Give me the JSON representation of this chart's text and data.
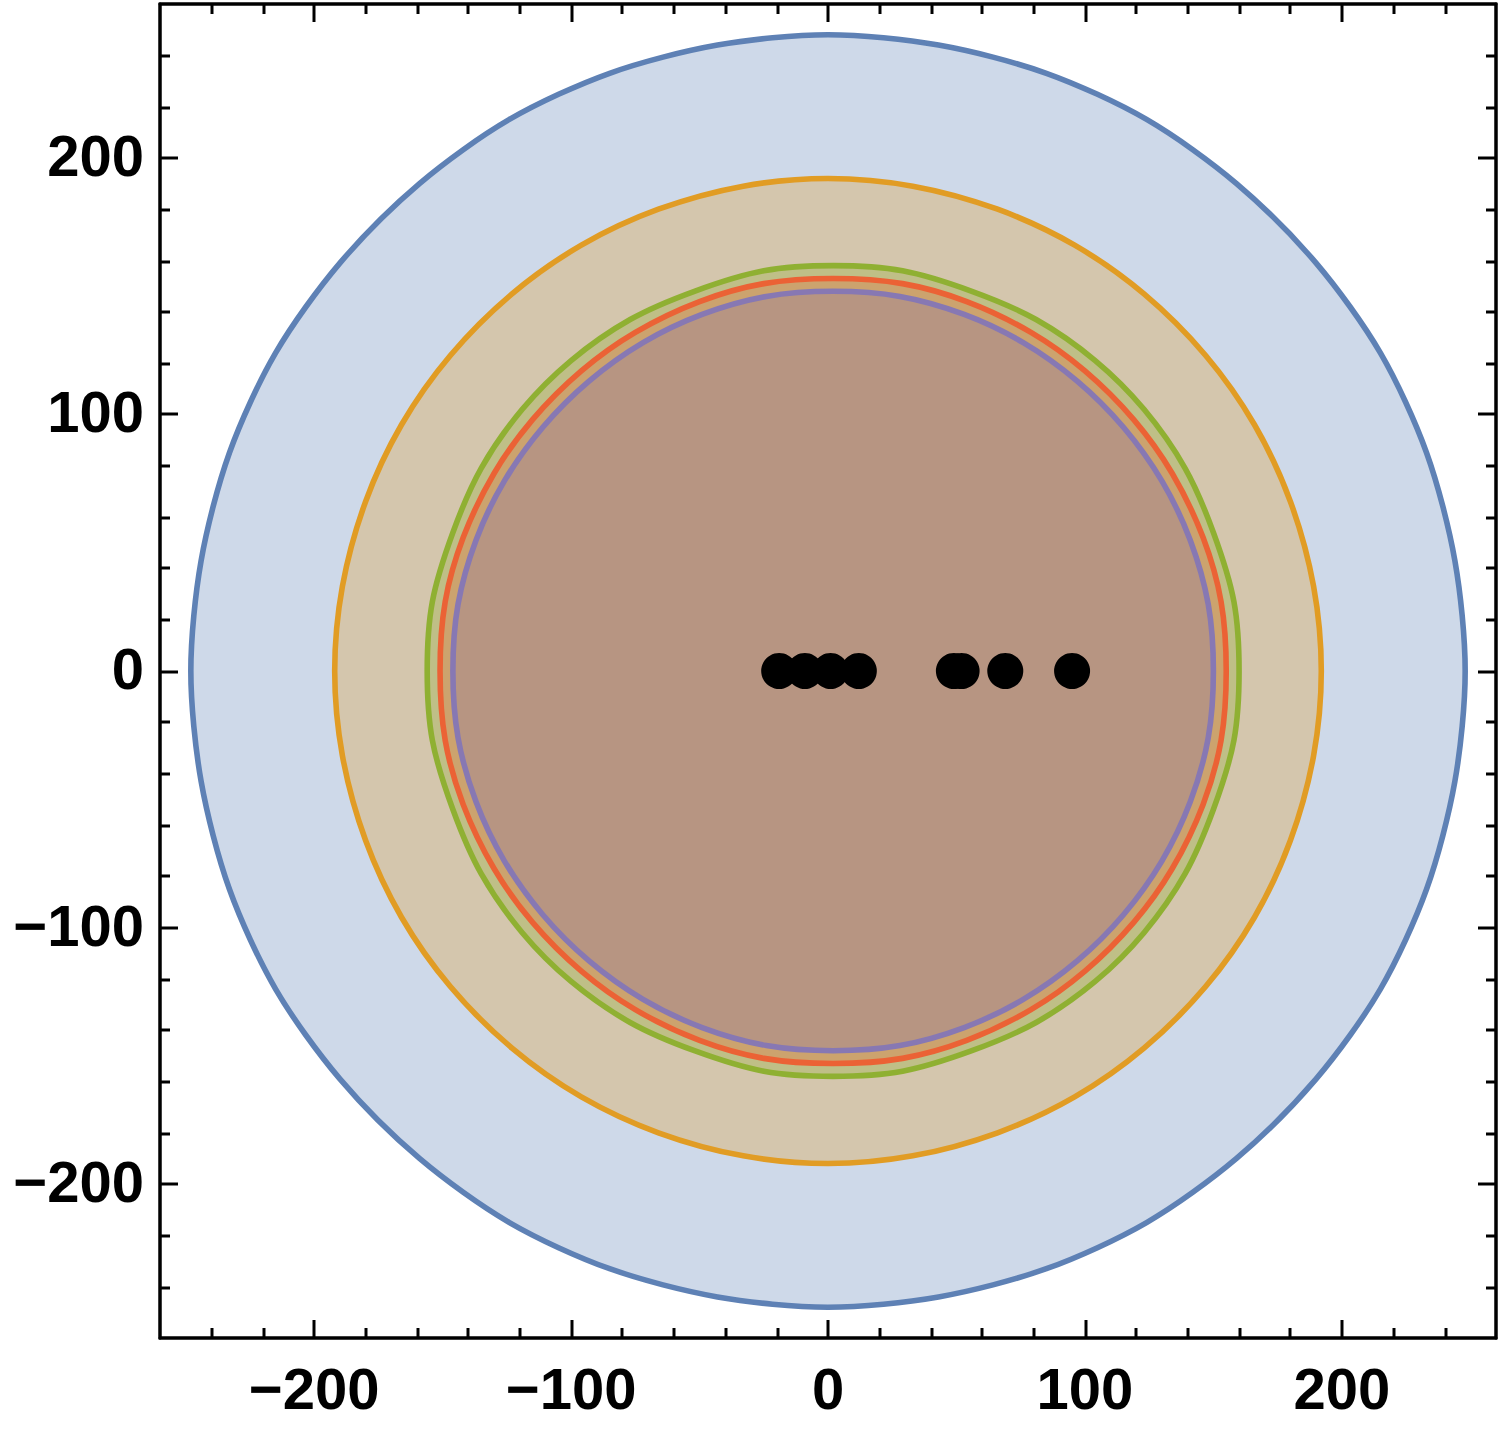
{
  "chart_data": {
    "type": "area",
    "xlim": [
      -260,
      260
    ],
    "ylim": [
      -260,
      260
    ],
    "xticks": [
      {
        "value": -240,
        "label": null
      },
      {
        "value": -220,
        "label": null
      },
      {
        "value": -200,
        "label": "−200"
      },
      {
        "value": -180,
        "label": null
      },
      {
        "value": -160,
        "label": null
      },
      {
        "value": -140,
        "label": null
      },
      {
        "value": -120,
        "label": null
      },
      {
        "value": -100,
        "label": "−100"
      },
      {
        "value": -80,
        "label": null
      },
      {
        "value": -60,
        "label": null
      },
      {
        "value": -40,
        "label": null
      },
      {
        "value": -20,
        "label": null
      },
      0,
      {
        "value": 20,
        "label": null
      },
      {
        "value": 40,
        "label": null
      },
      {
        "value": 60,
        "label": null
      },
      {
        "value": 80,
        "label": null
      },
      100,
      {
        "value": 120,
        "label": null
      },
      {
        "value": 140,
        "label": null
      },
      {
        "value": 160,
        "label": null
      },
      {
        "value": 180,
        "label": null
      },
      200,
      {
        "value": 220,
        "label": null
      },
      {
        "value": 240,
        "label": null
      }
    ],
    "yticks": [
      {
        "value": -240,
        "label": null
      },
      {
        "value": -220,
        "label": null
      },
      {
        "value": -200,
        "label": "−200"
      },
      {
        "value": -180,
        "label": null
      },
      {
        "value": -160,
        "label": null
      },
      {
        "value": -140,
        "label": null
      },
      {
        "value": -120,
        "label": null
      },
      {
        "value": -100,
        "label": "−100"
      },
      {
        "value": -80,
        "label": null
      },
      {
        "value": -60,
        "label": null
      },
      {
        "value": -40,
        "label": null
      },
      {
        "value": -20,
        "label": null
      },
      0,
      {
        "value": 20,
        "label": null
      },
      {
        "value": 40,
        "label": null
      },
      {
        "value": 60,
        "label": null
      },
      {
        "value": 80,
        "label": null
      },
      100,
      {
        "value": 120,
        "label": null
      },
      {
        "value": 140,
        "label": null
      },
      {
        "value": 160,
        "label": null
      },
      {
        "value": 180,
        "label": null
      },
      200,
      {
        "value": 220,
        "label": null
      },
      {
        "value": 240,
        "label": null
      }
    ],
    "series": [
      {
        "color": "#5e81b5",
        "x": [
          248,
          244,
          233,
          215,
          190,
          159,
          124,
          85,
          43,
          0,
          -43,
          -85,
          -124,
          -159,
          -190,
          -215,
          -233,
          -244,
          -248,
          -244,
          -233,
          -215,
          -190,
          -159,
          -124,
          -85,
          -43,
          0,
          43,
          85,
          124,
          159,
          190,
          215,
          233,
          244,
          248
        ],
        "values": [
          0,
          43,
          85,
          124,
          159,
          190,
          215,
          233,
          244,
          248,
          244,
          233,
          215,
          190,
          159,
          124,
          85,
          43,
          0,
          -43,
          -85,
          -124,
          -159,
          -190,
          -215,
          -233,
          -244,
          -248,
          -244,
          -233,
          -215,
          -190,
          -159,
          -124,
          -85,
          -43,
          0
        ]
      },
      {
        "color": "#e19c24",
        "x": [
          192,
          189,
          180,
          166,
          147,
          123,
          96,
          66,
          33,
          0,
          -33,
          -66,
          -96,
          -123,
          -147,
          -166,
          -180,
          -189,
          -192,
          -189,
          -180,
          -166,
          -147,
          -123,
          -96,
          -66,
          -33,
          0,
          33,
          66,
          96,
          123,
          147,
          166,
          180,
          189,
          192
        ],
        "values": [
          0,
          33,
          66,
          96,
          123,
          147,
          166,
          180,
          189,
          192,
          189,
          180,
          166,
          147,
          123,
          96,
          66,
          33,
          0,
          -33,
          -66,
          -96,
          -123,
          -147,
          -166,
          -180,
          -189,
          -192,
          -189,
          -180,
          -166,
          -147,
          -123,
          -96,
          -66,
          -33,
          0
        ]
      },
      {
        "color": "#8fb032",
        "x": [
          160,
          158,
          150,
          139,
          123,
          104,
          81,
          56,
          29,
          2,
          -25,
          -52,
          -77,
          -100,
          -119,
          -135,
          -146,
          -154,
          -156,
          -154,
          -146,
          -135,
          -119,
          -100,
          -77,
          -52,
          -25,
          2,
          29,
          56,
          81,
          104,
          123,
          139,
          150,
          158,
          160
        ],
        "values": [
          0,
          27,
          54,
          79,
          102,
          121,
          137,
          148,
          156,
          158,
          156,
          148,
          137,
          121,
          102,
          79,
          54,
          27,
          0,
          -27,
          -54,
          -79,
          -102,
          -121,
          -137,
          -148,
          -156,
          -158,
          -156,
          -148,
          -137,
          -121,
          -102,
          -79,
          -54,
          -27,
          0
        ]
      },
      {
        "color": "#eb6235",
        "x": [
          155,
          153,
          146,
          134,
          119,
          100,
          79,
          54,
          29,
          2,
          -25,
          -50,
          -75,
          -96,
          -115,
          -130,
          -142,
          -149,
          -151,
          -149,
          -142,
          -130,
          -115,
          -96,
          -75,
          -50,
          -25,
          2,
          29,
          54,
          79,
          100,
          119,
          134,
          146,
          153,
          155
        ],
        "values": [
          0,
          27,
          52,
          77,
          98,
          117,
          132,
          144,
          151,
          153,
          151,
          144,
          132,
          117,
          98,
          77,
          52,
          27,
          0,
          -27,
          -52,
          -77,
          -98,
          -117,
          -132,
          -144,
          -151,
          -153,
          -151,
          -144,
          -132,
          -117,
          -98,
          -77,
          -52,
          -27,
          0
        ]
      },
      {
        "color": "#8778b3",
        "x": [
          150,
          148,
          141,
          130,
          115,
          97,
          76,
          53,
          28,
          2,
          -24,
          -49,
          -72,
          -93,
          -111,
          -126,
          -137,
          -144,
          -146,
          -144,
          -137,
          -126,
          -111,
          -93,
          -72,
          -49,
          -24,
          2,
          28,
          53,
          76,
          97,
          115,
          130,
          141,
          148,
          150
        ],
        "values": [
          0,
          26,
          51,
          74,
          95,
          113,
          128,
          139,
          146,
          148,
          146,
          139,
          128,
          113,
          95,
          74,
          51,
          26,
          0,
          -26,
          -51,
          -74,
          -95,
          -113,
          -128,
          -139,
          -146,
          -148,
          -146,
          -139,
          -128,
          -113,
          -95,
          -74,
          -51,
          -26,
          0
        ]
      },
      {
        "type": "scatter",
        "color": "#000000",
        "marker": "circle",
        "x": [
          -19,
          -9,
          1,
          12,
          49,
          52,
          69,
          95
        ],
        "values": [
          0,
          0,
          0,
          0,
          0,
          0,
          0,
          0
        ]
      }
    ]
  }
}
